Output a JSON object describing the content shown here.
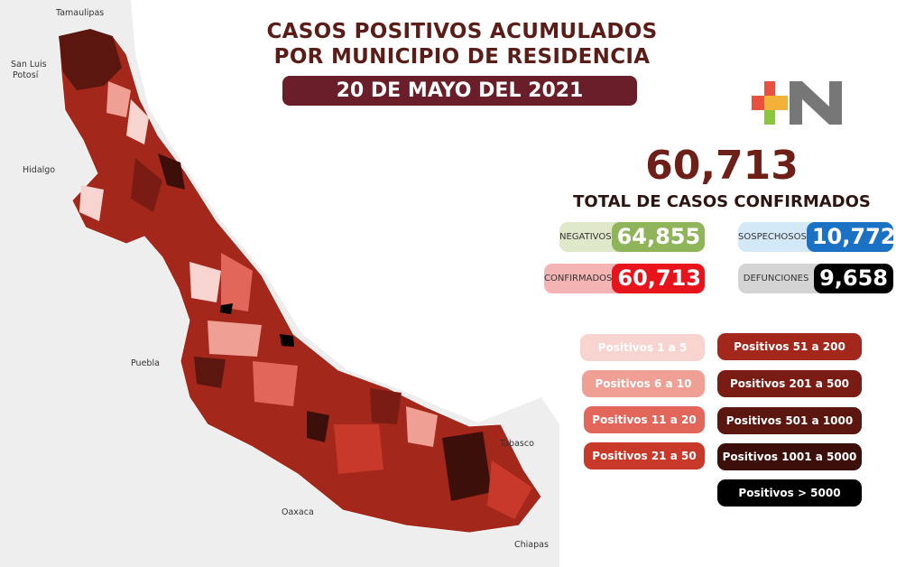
{
  "header": {
    "line1": "CASOS POSITIVOS ACUMULADOS",
    "line2": "POR MUNICIPIO DE RESIDENCIA",
    "date": "20 DE MAYO DEL 2021"
  },
  "logo": {
    "text": "+N",
    "colors": [
      "#e8513d",
      "#f4b13a",
      "#8cc63f",
      "#3fa9d6",
      "#777777"
    ]
  },
  "total": {
    "value": "60,713",
    "label": "TOTAL DE CASOS CONFIRMADOS"
  },
  "stats": {
    "negativos": {
      "label": "NEGATIVOS",
      "value": "64,855",
      "color": "#8fb45a"
    },
    "sospechosos": {
      "label": "SOSPECHOSOS",
      "value": "10,772",
      "color": "#1b72c4"
    },
    "confirmados": {
      "label": "CONFIRMADOS",
      "value": "60,713",
      "color": "#e8141c"
    },
    "defunciones": {
      "label": "DEFUNCIONES",
      "value": "9,658",
      "color": "#000000"
    }
  },
  "legend": [
    {
      "label": "Positivos 1 a 5",
      "color": "#f7d4d0"
    },
    {
      "label": "Positivos 6 a 10",
      "color": "#ef9f94"
    },
    {
      "label": "Positivos 11 a 20",
      "color": "#e2675a"
    },
    {
      "label": "Positivos 21 a 50",
      "color": "#c9392a"
    },
    {
      "label": "Positivos 51 a 200",
      "color": "#a3281b"
    },
    {
      "label": "Positivos 201 a 500",
      "color": "#7a1c14"
    },
    {
      "label": "Positivos 501 a 1000",
      "color": "#5a160f"
    },
    {
      "label": "Positivos 1001 a 5000",
      "color": "#3d0f0b"
    },
    {
      "label": "Positivos > 5000",
      "color": "#000000"
    }
  ],
  "neighbors": {
    "tamaulipas": "Tamaulipas",
    "slp1": "San Luis",
    "slp2": "Potosí",
    "hidalgo": "Hidalgo",
    "puebla": "Puebla",
    "oaxaca": "Oaxaca",
    "tabasco": "Tabasco",
    "chiapas": "Chiapas"
  }
}
